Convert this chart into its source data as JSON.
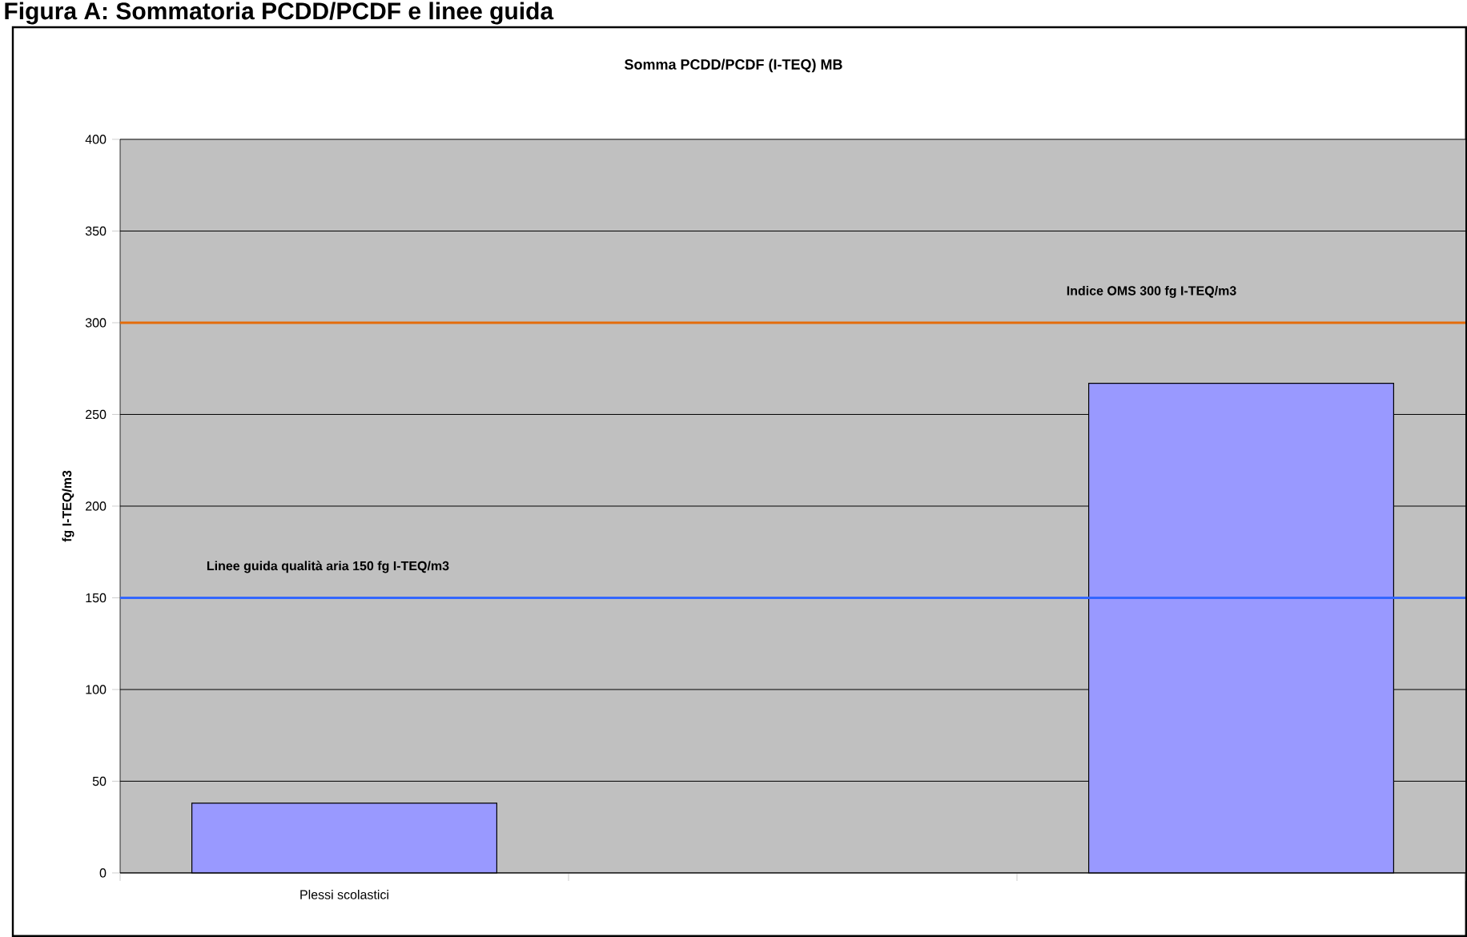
{
  "chart_data": {
    "type": "bar",
    "title": "Somma PCDD/PCDF (I-TEQ) MB",
    "annotations": [
      "Figura A: Sommatoria PCDD/PCDF e linee guida"
    ],
    "ylabel": "fg I-TEQ/m3",
    "categories": [
      "Plessi scolastici",
      null,
      null
    ],
    "values": [
      38,
      null,
      267
    ],
    "color": "#9999ff",
    "ylim": [
      0,
      400
    ],
    "yticks": [
      0,
      50,
      100,
      150,
      200,
      250,
      300,
      350,
      400
    ],
    "grid": "y",
    "ref_lines": [
      {
        "axis": "y",
        "value": 300,
        "label": "Indice OMS 300 fg I-TEQ/m3",
        "color": "#e46c0a"
      },
      {
        "axis": "y",
        "value": 150,
        "label": "Linee guida qualità aria 150 fg I-TEQ/m3",
        "color": "#3366ff"
      }
    ]
  }
}
